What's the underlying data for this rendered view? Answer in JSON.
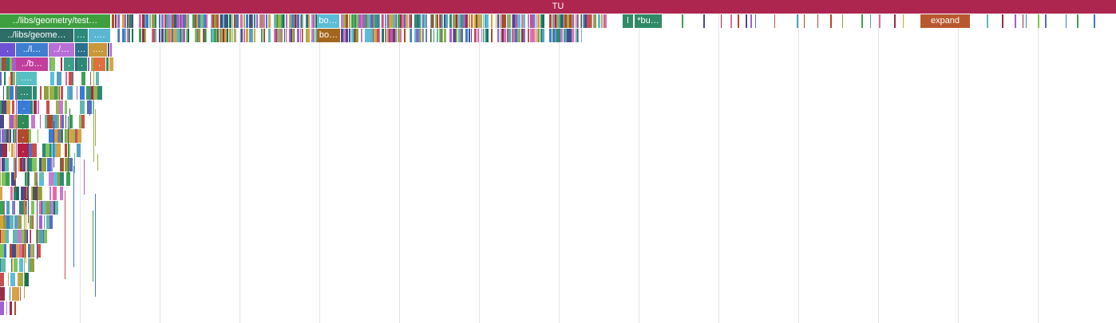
{
  "root_label": "TU",
  "palette": [
    "#3e9f55",
    "#2c8a72",
    "#5b6abf",
    "#a25fd1",
    "#d9a14a",
    "#5bbdd9",
    "#c94f4f",
    "#e36aa1",
    "#7fc45a",
    "#1f6e5c",
    "#b04a2c",
    "#9ab04a",
    "#3a7bd5",
    "#9a2d4a",
    "#62b8b0",
    "#d6a23a",
    "#4a4a8a",
    "#c779d0",
    "#8fa03c",
    "#55a0c0"
  ],
  "labels": {
    "row1_test": "../libs/geometry/test…",
    "row1_bo": "bo…",
    "row1_l": "l",
    "row1_bu": "*bu…",
    "row1_expand": "expand",
    "row2_geome": "../libs/geome…",
    "row2_dots": "…",
    "row2_dots2": "….",
    "row2_bo": "bo…",
    "row3_dot": ".",
    "row3_l": "../l…",
    "row3_slash": "../…",
    "row3_dots": "…",
    "row3_dots2": "….",
    "row4_b": "../b…",
    "row5_dots": "….",
    "row6_dots": "…",
    "small_dot": "."
  }
}
